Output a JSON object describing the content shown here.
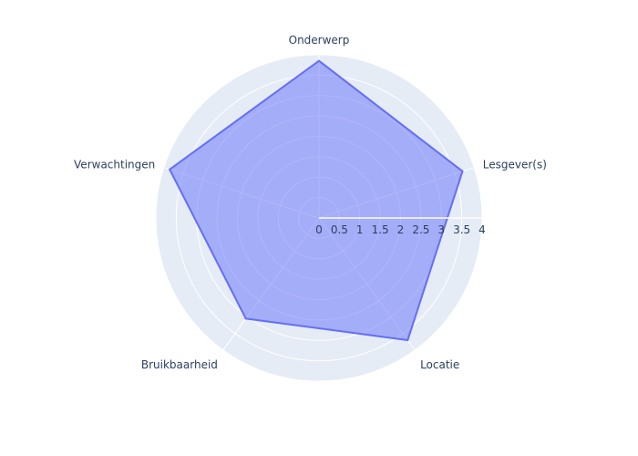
{
  "chart_data": {
    "type": "radar",
    "categories": [
      "Onderwerp",
      "Lesgever(s)",
      "Locatie",
      "Bruikbaarheid",
      "Verwachtingen"
    ],
    "series": [
      {
        "values": [
          3.85,
          3.7,
          3.7,
          3.05,
          3.85
        ]
      }
    ],
    "radial_range": [
      0,
      4
    ],
    "radial_ticks": [
      "0",
      "0.5",
      "1",
      "1.5",
      "2",
      "2.5",
      "3",
      "3.5",
      "4"
    ],
    "colors": {
      "polar_background": "#e5ecf6",
      "grid": "#ffffff",
      "fill": "rgba(99,110,250,0.5)",
      "line": "#636efa",
      "text": "#2a3f5f"
    }
  }
}
